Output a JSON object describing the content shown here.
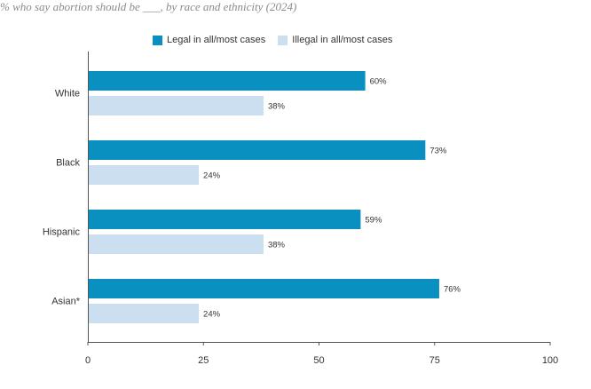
{
  "chart_data": {
    "type": "bar",
    "orientation": "horizontal",
    "subtitle": "% who say abortion should be ___, by race and ethnicity (2024)",
    "categories": [
      "White",
      "Black",
      "Hispanic",
      "Asian*"
    ],
    "series": [
      {
        "name": "Legal in all/most cases",
        "color": "#0a8fc1",
        "values": [
          60,
          73,
          59,
          76
        ],
        "labels": [
          "60%",
          "73%",
          "59%",
          "76%"
        ]
      },
      {
        "name": "Illegal in all/most cases",
        "color": "#cbdff0",
        "values": [
          38,
          24,
          38,
          24
        ],
        "labels": [
          "38%",
          "24%",
          "38%",
          "24%"
        ]
      }
    ],
    "xlim": [
      0,
      100
    ],
    "xticks": [
      0,
      25,
      50,
      75,
      100
    ],
    "xtick_labels": [
      "0",
      "25",
      "50",
      "75",
      "100"
    ],
    "legend_position": "top",
    "grid": false
  }
}
